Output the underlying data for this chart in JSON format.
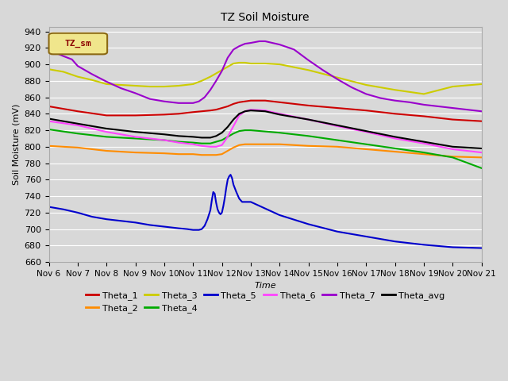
{
  "title": "TZ Soil Moisture",
  "xlabel": "Time",
  "ylabel": "Soil Moisture (mV)",
  "ylim": [
    660,
    945
  ],
  "xlim": [
    0,
    15
  ],
  "background_color": "#d8d8d8",
  "plot_bg": "#d8d8d8",
  "grid_color": "#ffffff",
  "legend_label": "TZ_sm",
  "legend_box_color": "#f0e68c",
  "legend_box_text_color": "#8b0000",
  "x_ticks": [
    0,
    1,
    2,
    3,
    4,
    5,
    6,
    7,
    8,
    9,
    10,
    11,
    12,
    13,
    14,
    15
  ],
  "x_tick_labels": [
    "Nov 6",
    "Nov 7",
    "Nov 8",
    "Nov 9",
    "Nov 10",
    "Nov 11",
    "Nov 12",
    "Nov 13",
    "Nov 14",
    "Nov 15",
    "Nov 16",
    "Nov 17",
    "Nov 18",
    "Nov 19",
    "Nov 20",
    "Nov 21"
  ],
  "series": {
    "Theta_1": {
      "color": "#cc0000",
      "points": [
        [
          0,
          849
        ],
        [
          1,
          843
        ],
        [
          2,
          838
        ],
        [
          3,
          838
        ],
        [
          4,
          839
        ],
        [
          4.5,
          840
        ],
        [
          5,
          842
        ],
        [
          5.3,
          843
        ],
        [
          5.6,
          844
        ],
        [
          5.8,
          845
        ],
        [
          6.0,
          847
        ],
        [
          6.2,
          849
        ],
        [
          6.4,
          852
        ],
        [
          6.6,
          854
        ],
        [
          6.8,
          855
        ],
        [
          7.0,
          856
        ],
        [
          7.5,
          856
        ],
        [
          8,
          854
        ],
        [
          9,
          850
        ],
        [
          10,
          847
        ],
        [
          11,
          844
        ],
        [
          12,
          840
        ],
        [
          13,
          837
        ],
        [
          14,
          833
        ],
        [
          15,
          831
        ]
      ]
    },
    "Theta_2": {
      "color": "#ff8c00",
      "points": [
        [
          0,
          801
        ],
        [
          1,
          799
        ],
        [
          2,
          795
        ],
        [
          3,
          793
        ],
        [
          4,
          792
        ],
        [
          4.5,
          791
        ],
        [
          5,
          791
        ],
        [
          5.3,
          790
        ],
        [
          5.6,
          790
        ],
        [
          5.8,
          790
        ],
        [
          6.0,
          791
        ],
        [
          6.2,
          795
        ],
        [
          6.4,
          799
        ],
        [
          6.6,
          802
        ],
        [
          6.8,
          803
        ],
        [
          7.0,
          803
        ],
        [
          8,
          803
        ],
        [
          9,
          801
        ],
        [
          10,
          800
        ],
        [
          11,
          797
        ],
        [
          12,
          794
        ],
        [
          13,
          791
        ],
        [
          14,
          788
        ],
        [
          15,
          787
        ]
      ]
    },
    "Theta_3": {
      "color": "#cccc00",
      "points": [
        [
          0,
          894
        ],
        [
          0.5,
          891
        ],
        [
          1,
          885
        ],
        [
          1.5,
          881
        ],
        [
          2,
          876
        ],
        [
          2.5,
          875
        ],
        [
          3,
          874
        ],
        [
          3.5,
          873
        ],
        [
          4,
          873
        ],
        [
          4.5,
          874
        ],
        [
          5,
          876
        ],
        [
          5.3,
          880
        ],
        [
          5.6,
          885
        ],
        [
          5.8,
          889
        ],
        [
          6.0,
          893
        ],
        [
          6.2,
          897
        ],
        [
          6.4,
          901
        ],
        [
          6.6,
          902
        ],
        [
          6.8,
          902
        ],
        [
          7.0,
          901
        ],
        [
          7.5,
          901
        ],
        [
          8,
          900
        ],
        [
          9,
          893
        ],
        [
          10,
          884
        ],
        [
          11,
          875
        ],
        [
          12,
          869
        ],
        [
          13,
          864
        ],
        [
          14,
          873
        ],
        [
          15,
          876
        ]
      ]
    },
    "Theta_4": {
      "color": "#00aa00",
      "points": [
        [
          0,
          821
        ],
        [
          1,
          816
        ],
        [
          2,
          812
        ],
        [
          3,
          810
        ],
        [
          4,
          808
        ],
        [
          4.5,
          806
        ],
        [
          5,
          805
        ],
        [
          5.3,
          804
        ],
        [
          5.6,
          804
        ],
        [
          5.8,
          806
        ],
        [
          6.0,
          808
        ],
        [
          6.2,
          812
        ],
        [
          6.4,
          816
        ],
        [
          6.6,
          819
        ],
        [
          6.8,
          820
        ],
        [
          7.0,
          820
        ],
        [
          8,
          817
        ],
        [
          9,
          813
        ],
        [
          10,
          808
        ],
        [
          11,
          803
        ],
        [
          12,
          798
        ],
        [
          13,
          793
        ],
        [
          14,
          787
        ],
        [
          15,
          774
        ]
      ]
    },
    "Theta_5": {
      "color": "#0000cc",
      "points": [
        [
          0,
          727
        ],
        [
          0.5,
          724
        ],
        [
          1,
          720
        ],
        [
          1.5,
          715
        ],
        [
          2,
          712
        ],
        [
          3,
          708
        ],
        [
          3.5,
          705
        ],
        [
          4,
          703
        ],
        [
          4.5,
          701
        ],
        [
          4.8,
          700
        ],
        [
          5.0,
          699
        ],
        [
          5.1,
          699
        ],
        [
          5.2,
          699
        ],
        [
          5.3,
          700
        ],
        [
          5.4,
          704
        ],
        [
          5.5,
          712
        ],
        [
          5.6,
          723
        ],
        [
          5.65,
          735
        ],
        [
          5.7,
          745
        ],
        [
          5.75,
          743
        ],
        [
          5.8,
          732
        ],
        [
          5.85,
          724
        ],
        [
          5.9,
          720
        ],
        [
          5.95,
          718
        ],
        [
          6.0,
          720
        ],
        [
          6.05,
          728
        ],
        [
          6.1,
          738
        ],
        [
          6.15,
          750
        ],
        [
          6.2,
          760
        ],
        [
          6.25,
          764
        ],
        [
          6.3,
          766
        ],
        [
          6.35,
          762
        ],
        [
          6.4,
          754
        ],
        [
          6.5,
          745
        ],
        [
          6.6,
          737
        ],
        [
          6.7,
          733
        ],
        [
          7.0,
          733
        ],
        [
          7.5,
          725
        ],
        [
          8,
          717
        ],
        [
          9,
          706
        ],
        [
          10,
          697
        ],
        [
          11,
          691
        ],
        [
          12,
          685
        ],
        [
          13,
          681
        ],
        [
          14,
          678
        ],
        [
          15,
          677
        ]
      ]
    },
    "Theta_6": {
      "color": "#ff44ff",
      "points": [
        [
          0,
          831
        ],
        [
          1,
          826
        ],
        [
          2,
          818
        ],
        [
          3,
          812
        ],
        [
          4,
          808
        ],
        [
          4.5,
          805
        ],
        [
          5,
          803
        ],
        [
          5.3,
          801
        ],
        [
          5.6,
          800
        ],
        [
          5.8,
          800
        ],
        [
          6.0,
          802
        ],
        [
          6.2,
          812
        ],
        [
          6.4,
          825
        ],
        [
          6.6,
          838
        ],
        [
          6.8,
          843
        ],
        [
          7.0,
          845
        ],
        [
          7.5,
          844
        ],
        [
          8,
          840
        ],
        [
          9,
          833
        ],
        [
          10,
          825
        ],
        [
          11,
          818
        ],
        [
          12,
          810
        ],
        [
          13,
          804
        ],
        [
          14,
          797
        ],
        [
          15,
          793
        ]
      ]
    },
    "Theta_7": {
      "color": "#9900cc",
      "points": [
        [
          0,
          916
        ],
        [
          0.3,
          913
        ],
        [
          0.5,
          910
        ],
        [
          0.8,
          906
        ],
        [
          1,
          898
        ],
        [
          1.5,
          888
        ],
        [
          2,
          879
        ],
        [
          2.5,
          871
        ],
        [
          3,
          865
        ],
        [
          3.5,
          858
        ],
        [
          4,
          855
        ],
        [
          4.5,
          853
        ],
        [
          5,
          853
        ],
        [
          5.2,
          855
        ],
        [
          5.4,
          860
        ],
        [
          5.6,
          869
        ],
        [
          5.8,
          880
        ],
        [
          6.0,
          892
        ],
        [
          6.2,
          908
        ],
        [
          6.4,
          918
        ],
        [
          6.6,
          922
        ],
        [
          6.8,
          925
        ],
        [
          7.0,
          926
        ],
        [
          7.3,
          928
        ],
        [
          7.5,
          928
        ],
        [
          8,
          924
        ],
        [
          8.5,
          918
        ],
        [
          9,
          905
        ],
        [
          9.5,
          893
        ],
        [
          10,
          882
        ],
        [
          10.5,
          872
        ],
        [
          11,
          864
        ],
        [
          11.5,
          859
        ],
        [
          12,
          856
        ],
        [
          12.5,
          854
        ],
        [
          13,
          851
        ],
        [
          13.5,
          849
        ],
        [
          14,
          847
        ],
        [
          15,
          843
        ]
      ]
    },
    "Theta_avg": {
      "color": "#000000",
      "points": [
        [
          0,
          834
        ],
        [
          1,
          828
        ],
        [
          2,
          822
        ],
        [
          3,
          818
        ],
        [
          4,
          815
        ],
        [
          4.5,
          813
        ],
        [
          5,
          812
        ],
        [
          5.3,
          811
        ],
        [
          5.6,
          811
        ],
        [
          5.8,
          813
        ],
        [
          6.0,
          817
        ],
        [
          6.2,
          824
        ],
        [
          6.4,
          833
        ],
        [
          6.6,
          840
        ],
        [
          6.8,
          843
        ],
        [
          7.0,
          844
        ],
        [
          7.5,
          843
        ],
        [
          8,
          839
        ],
        [
          9,
          833
        ],
        [
          10,
          826
        ],
        [
          11,
          819
        ],
        [
          12,
          812
        ],
        [
          13,
          806
        ],
        [
          14,
          800
        ],
        [
          15,
          798
        ]
      ]
    }
  }
}
